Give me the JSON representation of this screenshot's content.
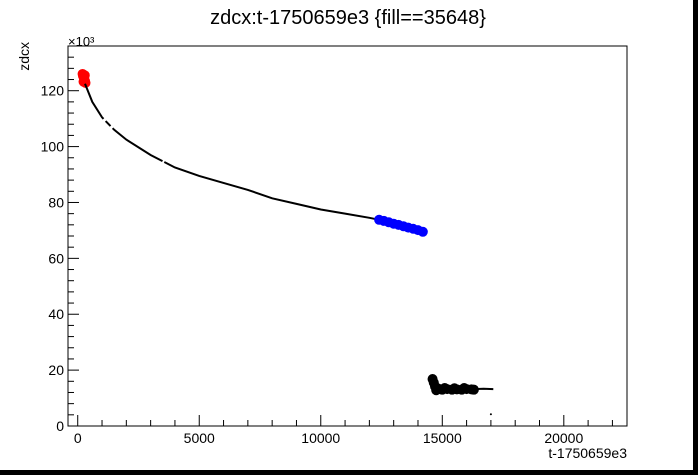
{
  "chart_data": {
    "type": "scatter",
    "title": "zdcx:t-1750659e3 {fill==35648}",
    "xlabel": "t-1750659e3",
    "ylabel": "zdcx",
    "y_multiplier_label": "×10³",
    "xlim": [
      -400,
      22600
    ],
    "ylim": [
      0,
      136000
    ],
    "x_ticks": [
      0,
      5000,
      10000,
      15000,
      20000
    ],
    "x_tick_labels": [
      "0",
      "5000",
      "10000",
      "15000",
      "20000"
    ],
    "y_ticks": [
      0,
      20000,
      40000,
      60000,
      80000,
      100000,
      120000
    ],
    "y_tick_labels": [
      "0",
      "20",
      "40",
      "60",
      "80",
      "100",
      "120"
    ],
    "grid": false,
    "legend": "none",
    "colors": {
      "black": "#000000",
      "red": "#ff0000",
      "blue": "#0000ff"
    },
    "series": [
      {
        "color": "#ff0000",
        "style": "circle",
        "points": [
          [
            200,
            126000
          ],
          [
            220,
            125200
          ],
          [
            250,
            124800
          ],
          [
            270,
            124000
          ],
          [
            300,
            123500
          ],
          [
            320,
            122800
          ],
          [
            290,
            125500
          ],
          [
            240,
            123200
          ]
        ]
      },
      {
        "color": "#000000",
        "style": "line",
        "points": [
          [
            300,
            122500
          ],
          [
            600,
            116000
          ],
          [
            1000,
            110500
          ],
          [
            1500,
            106000
          ],
          [
            2000,
            102500
          ],
          [
            3000,
            97000
          ],
          [
            4000,
            92500
          ],
          [
            5000,
            89500
          ],
          [
            6000,
            87000
          ],
          [
            7000,
            84500
          ],
          [
            8000,
            81500
          ],
          [
            9000,
            79500
          ],
          [
            10000,
            77500
          ],
          [
            11000,
            76000
          ],
          [
            12000,
            74500
          ],
          [
            12400,
            73800
          ]
        ]
      },
      {
        "color": "#0000ff",
        "style": "circle",
        "points": [
          [
            12400,
            73800
          ],
          [
            12600,
            73400
          ],
          [
            12800,
            72900
          ],
          [
            13000,
            72400
          ],
          [
            13200,
            72000
          ],
          [
            13400,
            71500
          ],
          [
            13600,
            71000
          ],
          [
            13800,
            70600
          ],
          [
            14000,
            70100
          ],
          [
            14200,
            69500
          ]
        ]
      },
      {
        "color": "#000000",
        "style": "circle",
        "points": [
          [
            14600,
            16800
          ],
          [
            14650,
            15500
          ],
          [
            14700,
            14200
          ],
          [
            14800,
            13500
          ],
          [
            14900,
            13200
          ],
          [
            15000,
            13000
          ],
          [
            15200,
            13200
          ],
          [
            15400,
            13000
          ],
          [
            15600,
            13100
          ],
          [
            15800,
            13000
          ],
          [
            16000,
            13200
          ],
          [
            16200,
            13100
          ],
          [
            16300,
            13000
          ],
          [
            14750,
            12800
          ],
          [
            15100,
            13600
          ],
          [
            15500,
            13500
          ],
          [
            15900,
            13600
          ]
        ]
      },
      {
        "color": "#000000",
        "style": "line",
        "points": [
          [
            16300,
            13200
          ],
          [
            16700,
            13300
          ],
          [
            17100,
            13200
          ]
        ]
      },
      {
        "color": "#000000",
        "style": "dot",
        "points": [
          [
            17000,
            4200
          ]
        ]
      }
    ]
  }
}
